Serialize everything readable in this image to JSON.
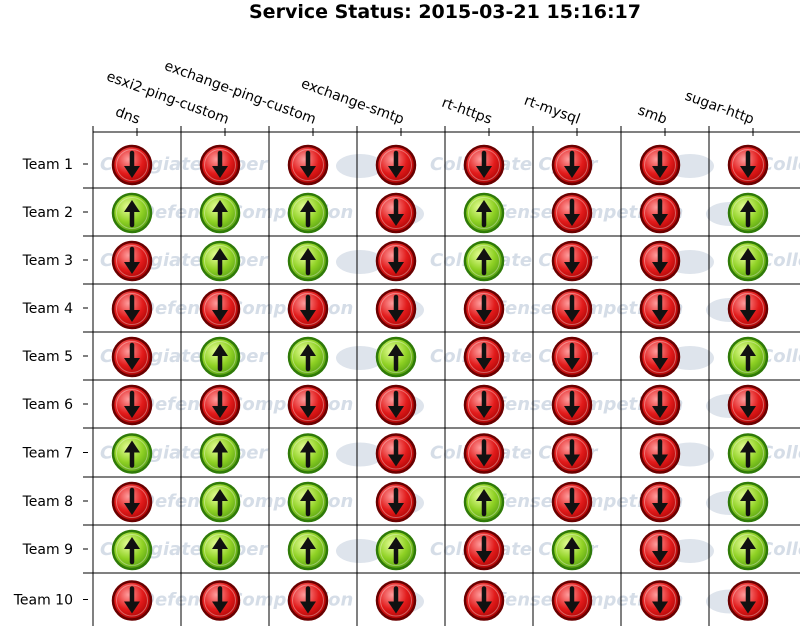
{
  "title": "Service Status: 2015-03-21 15:16:17",
  "watermark": {
    "line1": "Collegiate Cyber",
    "line2": "Defense Competition"
  },
  "colors": {
    "up": "#7cc41c",
    "up_border": "#2f7a08",
    "down": "#d61515",
    "down_border": "#6a0000",
    "grid": "#000000",
    "watermark": "#c8d2e0"
  },
  "chart_data": {
    "type": "table",
    "title": "Service Status: 2015-03-21 15:16:17",
    "services": [
      "dns",
      "esxi2-ping-custom",
      "exchange-ping-custom",
      "exchange-smtp",
      "rt-https",
      "rt-mysql",
      "smb",
      "sugar-http"
    ],
    "teams": [
      "Team 1",
      "Team 2",
      "Team 3",
      "Team 4",
      "Team 5",
      "Team 6",
      "Team 7",
      "Team 8",
      "Team 9",
      "Team 10"
    ],
    "status": [
      [
        "down",
        "down",
        "down",
        "down",
        "down",
        "down",
        "down",
        "down"
      ],
      [
        "up",
        "up",
        "up",
        "down",
        "up",
        "down",
        "down",
        "up"
      ],
      [
        "down",
        "up",
        "up",
        "down",
        "up",
        "down",
        "down",
        "up"
      ],
      [
        "down",
        "down",
        "down",
        "down",
        "down",
        "down",
        "down",
        "down"
      ],
      [
        "down",
        "up",
        "up",
        "up",
        "down",
        "down",
        "down",
        "up"
      ],
      [
        "down",
        "down",
        "down",
        "down",
        "down",
        "down",
        "down",
        "down"
      ],
      [
        "up",
        "up",
        "up",
        "down",
        "down",
        "down",
        "down",
        "up"
      ],
      [
        "down",
        "up",
        "up",
        "down",
        "up",
        "down",
        "down",
        "up"
      ],
      [
        "up",
        "up",
        "up",
        "up",
        "down",
        "up",
        "down",
        "up"
      ],
      [
        "down",
        "down",
        "down",
        "down",
        "down",
        "down",
        "down",
        "down"
      ]
    ]
  }
}
